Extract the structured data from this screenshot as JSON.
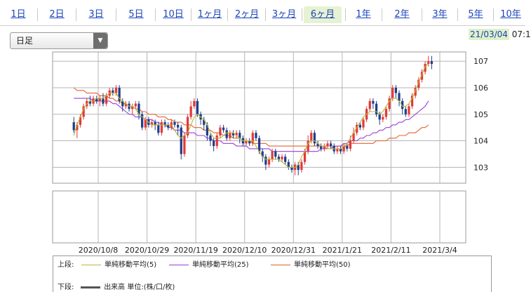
{
  "tabs": [
    "1日",
    "2日",
    "3日",
    "5日",
    "10日",
    "1ヶ月",
    "2ヶ月",
    "3ヶ月",
    "6ヶ月",
    "1年",
    "2年",
    "3年",
    "5年",
    "10年"
  ],
  "active_tab": "6ヶ月",
  "interval_select": "日足",
  "datetime": {
    "date": "21/03/04",
    "time": "07:1"
  },
  "colors": {
    "up": "#e23a36",
    "down": "#1f3d8a",
    "ma5": "#b8b83a",
    "ma25": "#9b3fd4",
    "ma50": "#e06432",
    "grid": "#b5b5b5",
    "active_tab": "#e6f2d3"
  },
  "legend": {
    "upper_label": "上段:",
    "lower_label": "下段:",
    "ma5": "単純移動平均(5)",
    "ma25": "単純移動平均(25)",
    "ma50": "単純移動平均(50)",
    "volume": "出来高 単位:(株/口/枚)"
  },
  "chart_data": {
    "type": "candlestick",
    "x_ticks": [
      "2020/10/8",
      "2020/10/29",
      "2020/11/19",
      "2020/12/10",
      "2020/12/31",
      "2021/1/21",
      "2021/2/11",
      "2021/3/4"
    ],
    "ylim": [
      102.4,
      107.35
    ],
    "y_ticks": [
      103,
      104,
      105,
      106,
      107
    ],
    "bars_per_week": 5,
    "start_offset_bars": -8,
    "candles": [
      [
        104.7,
        104.4,
        104.9,
        104.3
      ],
      [
        104.4,
        104.6,
        104.7,
        104.1
      ],
      [
        104.6,
        104.9,
        105.0,
        104.5
      ],
      [
        104.9,
        105.3,
        105.4,
        104.8
      ],
      [
        105.3,
        105.5,
        105.6,
        105.2
      ],
      [
        105.5,
        105.4,
        105.7,
        105.3
      ],
      [
        105.4,
        105.6,
        105.7,
        105.3
      ],
      [
        105.6,
        105.5,
        105.7,
        105.4
      ],
      [
        105.5,
        105.6,
        105.7,
        105.3
      ],
      [
        105.6,
        105.4,
        105.8,
        105.3
      ],
      [
        105.4,
        105.7,
        105.8,
        105.3
      ],
      [
        105.7,
        105.9,
        106.0,
        105.6
      ],
      [
        105.9,
        105.8,
        106.0,
        105.7
      ],
      [
        105.8,
        106.0,
        106.1,
        105.7
      ],
      [
        106.0,
        105.5,
        106.1,
        105.4
      ],
      [
        105.5,
        105.3,
        105.6,
        105.1
      ],
      [
        105.3,
        105.4,
        105.5,
        105.2
      ],
      [
        105.4,
        105.2,
        105.5,
        105.1
      ],
      [
        105.2,
        105.3,
        105.4,
        105.0
      ],
      [
        105.3,
        105.4,
        105.5,
        105.2
      ],
      [
        105.4,
        105.0,
        105.5,
        104.8
      ],
      [
        105.0,
        104.5,
        105.1,
        104.4
      ],
      [
        104.5,
        104.8,
        104.9,
        104.4
      ],
      [
        104.8,
        104.6,
        104.9,
        104.5
      ],
      [
        104.6,
        104.7,
        104.8,
        104.5
      ],
      [
        104.7,
        104.6,
        104.8,
        104.4
      ],
      [
        104.6,
        104.3,
        104.7,
        104.2
      ],
      [
        104.3,
        104.7,
        104.8,
        104.2
      ],
      [
        104.7,
        104.6,
        104.8,
        104.5
      ],
      [
        104.6,
        104.5,
        104.7,
        104.4
      ],
      [
        104.5,
        104.7,
        104.8,
        104.4
      ],
      [
        104.7,
        104.6,
        104.8,
        104.5
      ],
      [
        104.6,
        104.5,
        104.7,
        104.2
      ],
      [
        104.5,
        103.5,
        104.6,
        103.3
      ],
      [
        103.5,
        104.2,
        104.3,
        103.4
      ],
      [
        104.2,
        104.9,
        105.0,
        104.1
      ],
      [
        104.9,
        105.3,
        105.5,
        104.8
      ],
      [
        105.3,
        105.5,
        105.6,
        105.2
      ],
      [
        105.5,
        105.0,
        105.6,
        104.9
      ],
      [
        105.0,
        104.8,
        105.1,
        104.6
      ],
      [
        104.8,
        104.6,
        104.9,
        104.4
      ],
      [
        104.6,
        104.2,
        104.7,
        104.0
      ],
      [
        104.2,
        104.0,
        104.3,
        103.8
      ],
      [
        104.0,
        103.8,
        104.1,
        103.6
      ],
      [
        103.8,
        104.2,
        104.3,
        103.7
      ],
      [
        104.2,
        104.5,
        104.6,
        104.1
      ],
      [
        104.5,
        104.4,
        104.6,
        104.3
      ],
      [
        104.4,
        104.1,
        104.5,
        104.0
      ],
      [
        104.1,
        104.3,
        104.4,
        104.0
      ],
      [
        104.3,
        104.2,
        104.4,
        104.1
      ],
      [
        104.2,
        104.3,
        104.4,
        104.1
      ],
      [
        104.3,
        104.1,
        104.4,
        103.9
      ],
      [
        104.1,
        103.9,
        104.2,
        103.8
      ],
      [
        103.9,
        104.0,
        104.1,
        103.8
      ],
      [
        104.0,
        103.9,
        104.1,
        103.8
      ],
      [
        103.9,
        104.3,
        104.4,
        103.8
      ],
      [
        104.3,
        104.1,
        104.4,
        104.0
      ],
      [
        104.1,
        103.6,
        104.2,
        103.5
      ],
      [
        103.6,
        103.4,
        103.7,
        103.2
      ],
      [
        103.4,
        103.1,
        103.5,
        102.9
      ],
      [
        103.1,
        103.3,
        103.4,
        103.0
      ],
      [
        103.3,
        103.6,
        103.7,
        103.2
      ],
      [
        103.6,
        103.4,
        103.7,
        103.3
      ],
      [
        103.4,
        103.3,
        103.5,
        103.2
      ],
      [
        103.3,
        103.4,
        103.5,
        103.2
      ],
      [
        103.4,
        103.2,
        103.5,
        103.1
      ],
      [
        103.2,
        103.0,
        103.3,
        102.9
      ],
      [
        103.0,
        102.9,
        103.1,
        102.8
      ],
      [
        102.9,
        103.1,
        103.2,
        102.7
      ],
      [
        103.1,
        102.9,
        103.2,
        102.7
      ],
      [
        102.9,
        103.2,
        103.3,
        102.8
      ],
      [
        103.2,
        103.6,
        103.7,
        103.1
      ],
      [
        103.6,
        104.0,
        104.2,
        103.5
      ],
      [
        104.0,
        104.3,
        104.4,
        103.9
      ],
      [
        104.3,
        103.9,
        104.4,
        103.8
      ],
      [
        103.9,
        103.8,
        104.0,
        103.7
      ],
      [
        103.8,
        103.7,
        103.9,
        103.6
      ],
      [
        103.7,
        103.8,
        103.9,
        103.6
      ],
      [
        103.8,
        103.9,
        104.0,
        103.7
      ],
      [
        103.9,
        103.8,
        104.0,
        103.7
      ],
      [
        103.8,
        103.6,
        103.9,
        103.5
      ],
      [
        103.6,
        103.7,
        103.8,
        103.5
      ],
      [
        103.7,
        103.6,
        103.8,
        103.5
      ],
      [
        103.6,
        103.8,
        103.9,
        103.5
      ],
      [
        103.8,
        103.7,
        103.9,
        103.6
      ],
      [
        103.7,
        104.0,
        104.2,
        103.6
      ],
      [
        104.0,
        104.3,
        104.5,
        103.9
      ],
      [
        104.3,
        104.6,
        104.7,
        104.2
      ],
      [
        104.6,
        104.5,
        104.7,
        104.4
      ],
      [
        104.5,
        104.8,
        104.9,
        104.4
      ],
      [
        104.8,
        105.2,
        105.3,
        104.7
      ],
      [
        105.2,
        105.5,
        105.6,
        105.1
      ],
      [
        105.5,
        105.4,
        105.6,
        105.2
      ],
      [
        105.4,
        105.0,
        105.5,
        104.9
      ],
      [
        105.0,
        104.8,
        105.1,
        104.6
      ],
      [
        104.8,
        104.9,
        105.0,
        104.7
      ],
      [
        104.9,
        105.2,
        105.3,
        104.8
      ],
      [
        105.2,
        105.6,
        105.7,
        105.1
      ],
      [
        105.6,
        106.0,
        106.1,
        105.5
      ],
      [
        106.0,
        105.8,
        106.1,
        105.6
      ],
      [
        105.8,
        105.5,
        105.9,
        105.3
      ],
      [
        105.5,
        105.2,
        105.6,
        105.0
      ],
      [
        105.2,
        105.0,
        105.3,
        104.9
      ],
      [
        105.0,
        105.3,
        105.4,
        104.9
      ],
      [
        105.3,
        105.7,
        105.8,
        105.2
      ],
      [
        105.7,
        106.0,
        106.1,
        105.6
      ],
      [
        106.0,
        106.3,
        106.4,
        105.9
      ],
      [
        106.3,
        106.6,
        106.7,
        106.2
      ],
      [
        106.6,
        106.9,
        107.0,
        106.5
      ],
      [
        106.9,
        107.0,
        107.2,
        106.8
      ],
      [
        107.0,
        106.9,
        107.2,
        106.7
      ]
    ],
    "ma5": [
      104.2,
      104.6,
      104.9,
      105.2,
      105.4,
      105.5,
      105.5,
      105.6,
      105.6,
      105.6,
      105.7,
      105.8,
      105.8,
      105.8,
      105.6,
      105.5,
      105.4,
      105.3,
      105.3,
      105.2,
      105.0,
      104.9,
      104.8,
      104.7,
      104.6,
      104.6,
      104.6,
      104.6,
      104.6,
      104.6,
      104.6,
      104.4,
      104.2,
      104.1,
      104.2,
      104.3,
      104.6,
      104.9,
      105.0,
      104.9,
      104.8,
      104.6,
      104.3,
      104.1,
      104.1,
      104.1,
      104.2,
      104.3,
      104.3,
      104.3,
      104.2,
      104.1,
      104.0,
      104.0,
      104.0,
      104.0,
      103.8,
      103.6,
      103.4,
      103.3,
      103.3,
      103.3,
      103.3,
      103.3,
      103.2,
      103.1,
      103.0,
      103.0,
      103.0,
      103.1,
      103.4,
      103.6,
      103.9,
      104.0,
      104.0,
      103.9,
      103.8,
      103.8,
      103.7,
      103.7,
      103.7,
      103.7,
      103.7,
      103.8,
      103.9,
      104.1,
      104.3,
      104.5,
      104.7,
      104.9,
      105.0,
      105.1,
      105.1,
      105.1,
      105.0,
      105.1,
      105.3,
      105.5,
      105.6,
      105.6,
      105.5,
      105.3,
      105.3,
      105.4,
      105.6,
      105.9,
      106.2,
      106.5,
      106.8,
      106.9
    ],
    "ma25": [
      105.6,
      105.6,
      105.6,
      105.6,
      105.6,
      105.6,
      105.5,
      105.5,
      105.5,
      105.5,
      105.5,
      105.5,
      105.4,
      105.4,
      105.3,
      105.2,
      105.1,
      105.0,
      105.0,
      104.9,
      104.9,
      104.9,
      104.8,
      104.8,
      104.8,
      104.7,
      104.7,
      104.6,
      104.6,
      104.5,
      104.5,
      104.4,
      104.4,
      104.4,
      104.3,
      104.3,
      104.3,
      104.3,
      104.2,
      104.2,
      104.2,
      104.1,
      104.1,
      104.0,
      104.0,
      104.0,
      103.9,
      103.9,
      103.9,
      103.9,
      103.8,
      103.8,
      103.8,
      103.8,
      103.7,
      103.7,
      103.7,
      103.7,
      103.7,
      103.7,
      103.7,
      103.6,
      103.6,
      103.6,
      103.6,
      103.6,
      103.6,
      103.6,
      103.6,
      103.6,
      103.6,
      103.6,
      103.6,
      103.6,
      103.6,
      103.6,
      103.7,
      103.7,
      103.7,
      103.7,
      103.8,
      103.8,
      103.8,
      103.9,
      103.9,
      104.0,
      104.0,
      104.0,
      104.1,
      104.1,
      104.2,
      104.2,
      104.3,
      104.3,
      104.4,
      104.4,
      104.5,
      104.5,
      104.6,
      104.6,
      104.7,
      104.7,
      104.8,
      104.8,
      104.9,
      105.0,
      105.1,
      105.2,
      105.3,
      105.5
    ],
    "ma50": [
      106.0,
      105.9,
      105.9,
      105.9,
      105.8,
      105.8,
      105.8,
      105.8,
      105.7,
      105.7,
      105.7,
      105.6,
      105.6,
      105.5,
      105.5,
      105.4,
      105.4,
      105.3,
      105.3,
      105.2,
      105.2,
      105.1,
      105.1,
      105.0,
      105.0,
      105.0,
      104.9,
      104.9,
      104.9,
      104.8,
      104.8,
      104.7,
      104.7,
      104.7,
      104.6,
      104.6,
      104.6,
      104.5,
      104.5,
      104.5,
      104.4,
      104.4,
      104.4,
      104.3,
      104.3,
      104.3,
      104.2,
      104.2,
      104.2,
      104.1,
      104.1,
      104.1,
      104.0,
      104.0,
      104.0,
      103.9,
      103.9,
      103.9,
      103.9,
      103.9,
      103.8,
      103.8,
      103.8,
      103.8,
      103.8,
      103.8,
      103.8,
      103.8,
      103.8,
      103.8,
      103.8,
      103.8,
      103.8,
      103.8,
      103.8,
      103.8,
      103.8,
      103.8,
      103.8,
      103.8,
      103.8,
      103.8,
      103.8,
      103.8,
      103.8,
      103.9,
      103.9,
      103.9,
      103.9,
      103.9,
      103.9,
      103.9,
      103.9,
      104.0,
      104.0,
      104.0,
      104.0,
      104.1,
      104.1,
      104.1,
      104.2,
      104.2,
      104.2,
      104.3,
      104.3,
      104.3,
      104.4,
      104.5,
      104.5,
      104.6
    ]
  }
}
